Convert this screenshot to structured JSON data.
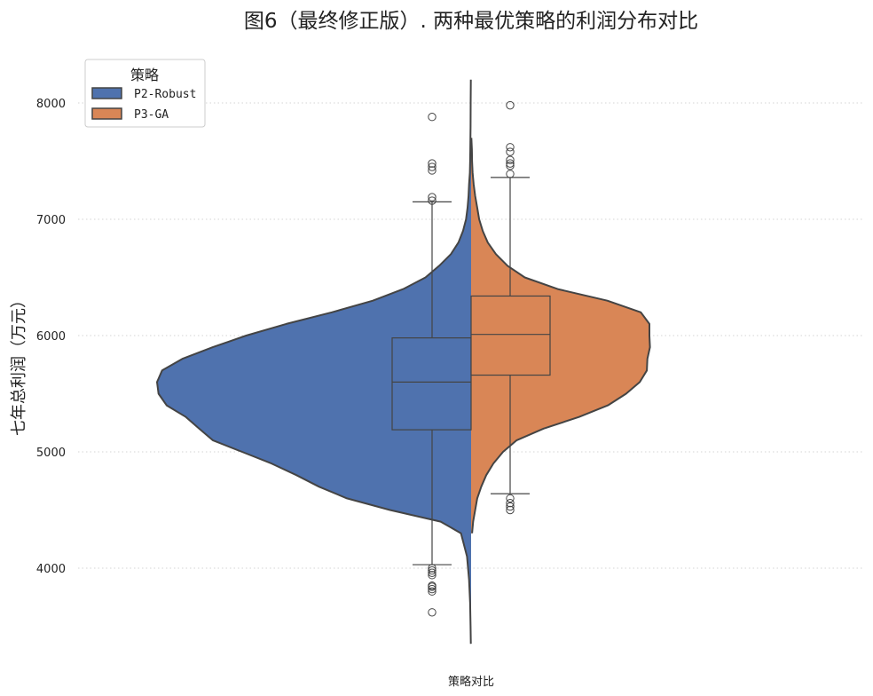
{
  "chart_data": {
    "type": "violin",
    "title": "图6（最终修正版）. 两种最优策略的利润分布对比",
    "xlabel": "策略对比",
    "ylabel": "七年总利润（万元）",
    "ylim": [
      3350,
      8250
    ],
    "yticks": [
      4000,
      5000,
      6000,
      7000,
      8000
    ],
    "grid": "horizontal-dotted",
    "legend": {
      "title": "策略",
      "location": "top-left"
    },
    "series": [
      {
        "name": "P2-Robust",
        "side": "left",
        "color": "#4f72ae",
        "kde": [
          [
            3350,
            0.5
          ],
          [
            3500,
            1
          ],
          [
            3700,
            2
          ],
          [
            3900,
            4
          ],
          [
            4100,
            8
          ],
          [
            4300,
            20
          ],
          [
            4400,
            60
          ],
          [
            4500,
            160
          ],
          [
            4600,
            245
          ],
          [
            4700,
            300
          ],
          [
            4800,
            345
          ],
          [
            4900,
            394
          ],
          [
            5000,
            452
          ],
          [
            5100,
            510
          ],
          [
            5200,
            537
          ],
          [
            5300,
            563
          ],
          [
            5400,
            601
          ],
          [
            5500,
            617
          ],
          [
            5600,
            620
          ],
          [
            5700,
            610
          ],
          [
            5800,
            570
          ],
          [
            5900,
            510
          ],
          [
            6000,
            444
          ],
          [
            6100,
            365
          ],
          [
            6200,
            275
          ],
          [
            6300,
            194
          ],
          [
            6400,
            134
          ],
          [
            6500,
            90
          ],
          [
            6600,
            63
          ],
          [
            6700,
            40
          ],
          [
            6800,
            25
          ],
          [
            6900,
            16
          ],
          [
            7000,
            10
          ],
          [
            7100,
            7
          ],
          [
            7200,
            5
          ],
          [
            7300,
            4
          ],
          [
            7400,
            2.5
          ],
          [
            7500,
            2
          ],
          [
            7600,
            1.5
          ],
          [
            7800,
            1
          ],
          [
            8000,
            0.8
          ],
          [
            8200,
            0.5
          ]
        ],
        "box": {
          "whisker_low": 4030,
          "q1": 5190,
          "median": 5600,
          "q3": 5980,
          "whisker_high": 7150
        },
        "outliers": [
          3620,
          3800,
          3820,
          3840,
          3850,
          3940,
          3960,
          3980,
          4000,
          7160,
          7190,
          7420,
          7450,
          7480,
          7880
        ]
      },
      {
        "name": "P3-GA",
        "side": "right",
        "color": "#d98656",
        "kde": [
          [
            4300,
            2
          ],
          [
            4400,
            4
          ],
          [
            4500,
            8
          ],
          [
            4600,
            12
          ],
          [
            4700,
            20
          ],
          [
            4800,
            30
          ],
          [
            4900,
            44
          ],
          [
            5000,
            63
          ],
          [
            5100,
            90
          ],
          [
            5200,
            143
          ],
          [
            5300,
            213
          ],
          [
            5400,
            270
          ],
          [
            5500,
            306
          ],
          [
            5600,
            333
          ],
          [
            5700,
            347
          ],
          [
            5800,
            348
          ],
          [
            5900,
            353
          ],
          [
            6000,
            352
          ],
          [
            6100,
            352
          ],
          [
            6200,
            335
          ],
          [
            6300,
            269
          ],
          [
            6400,
            171
          ],
          [
            6500,
            106
          ],
          [
            6600,
            72
          ],
          [
            6700,
            49
          ],
          [
            6800,
            33
          ],
          [
            6900,
            23
          ],
          [
            7000,
            16
          ],
          [
            7100,
            12
          ],
          [
            7200,
            8
          ],
          [
            7300,
            5
          ],
          [
            7400,
            3
          ],
          [
            7500,
            2
          ],
          [
            7600,
            1.5
          ],
          [
            7700,
            0.6
          ]
        ],
        "box": {
          "whisker_low": 4640,
          "q1": 5660,
          "median": 6010,
          "q3": 6340,
          "whisker_high": 7360
        },
        "outliers": [
          4500,
          4530,
          4560,
          4600,
          7390,
          7460,
          7480,
          7510,
          7580,
          7620,
          7980
        ]
      }
    ]
  }
}
